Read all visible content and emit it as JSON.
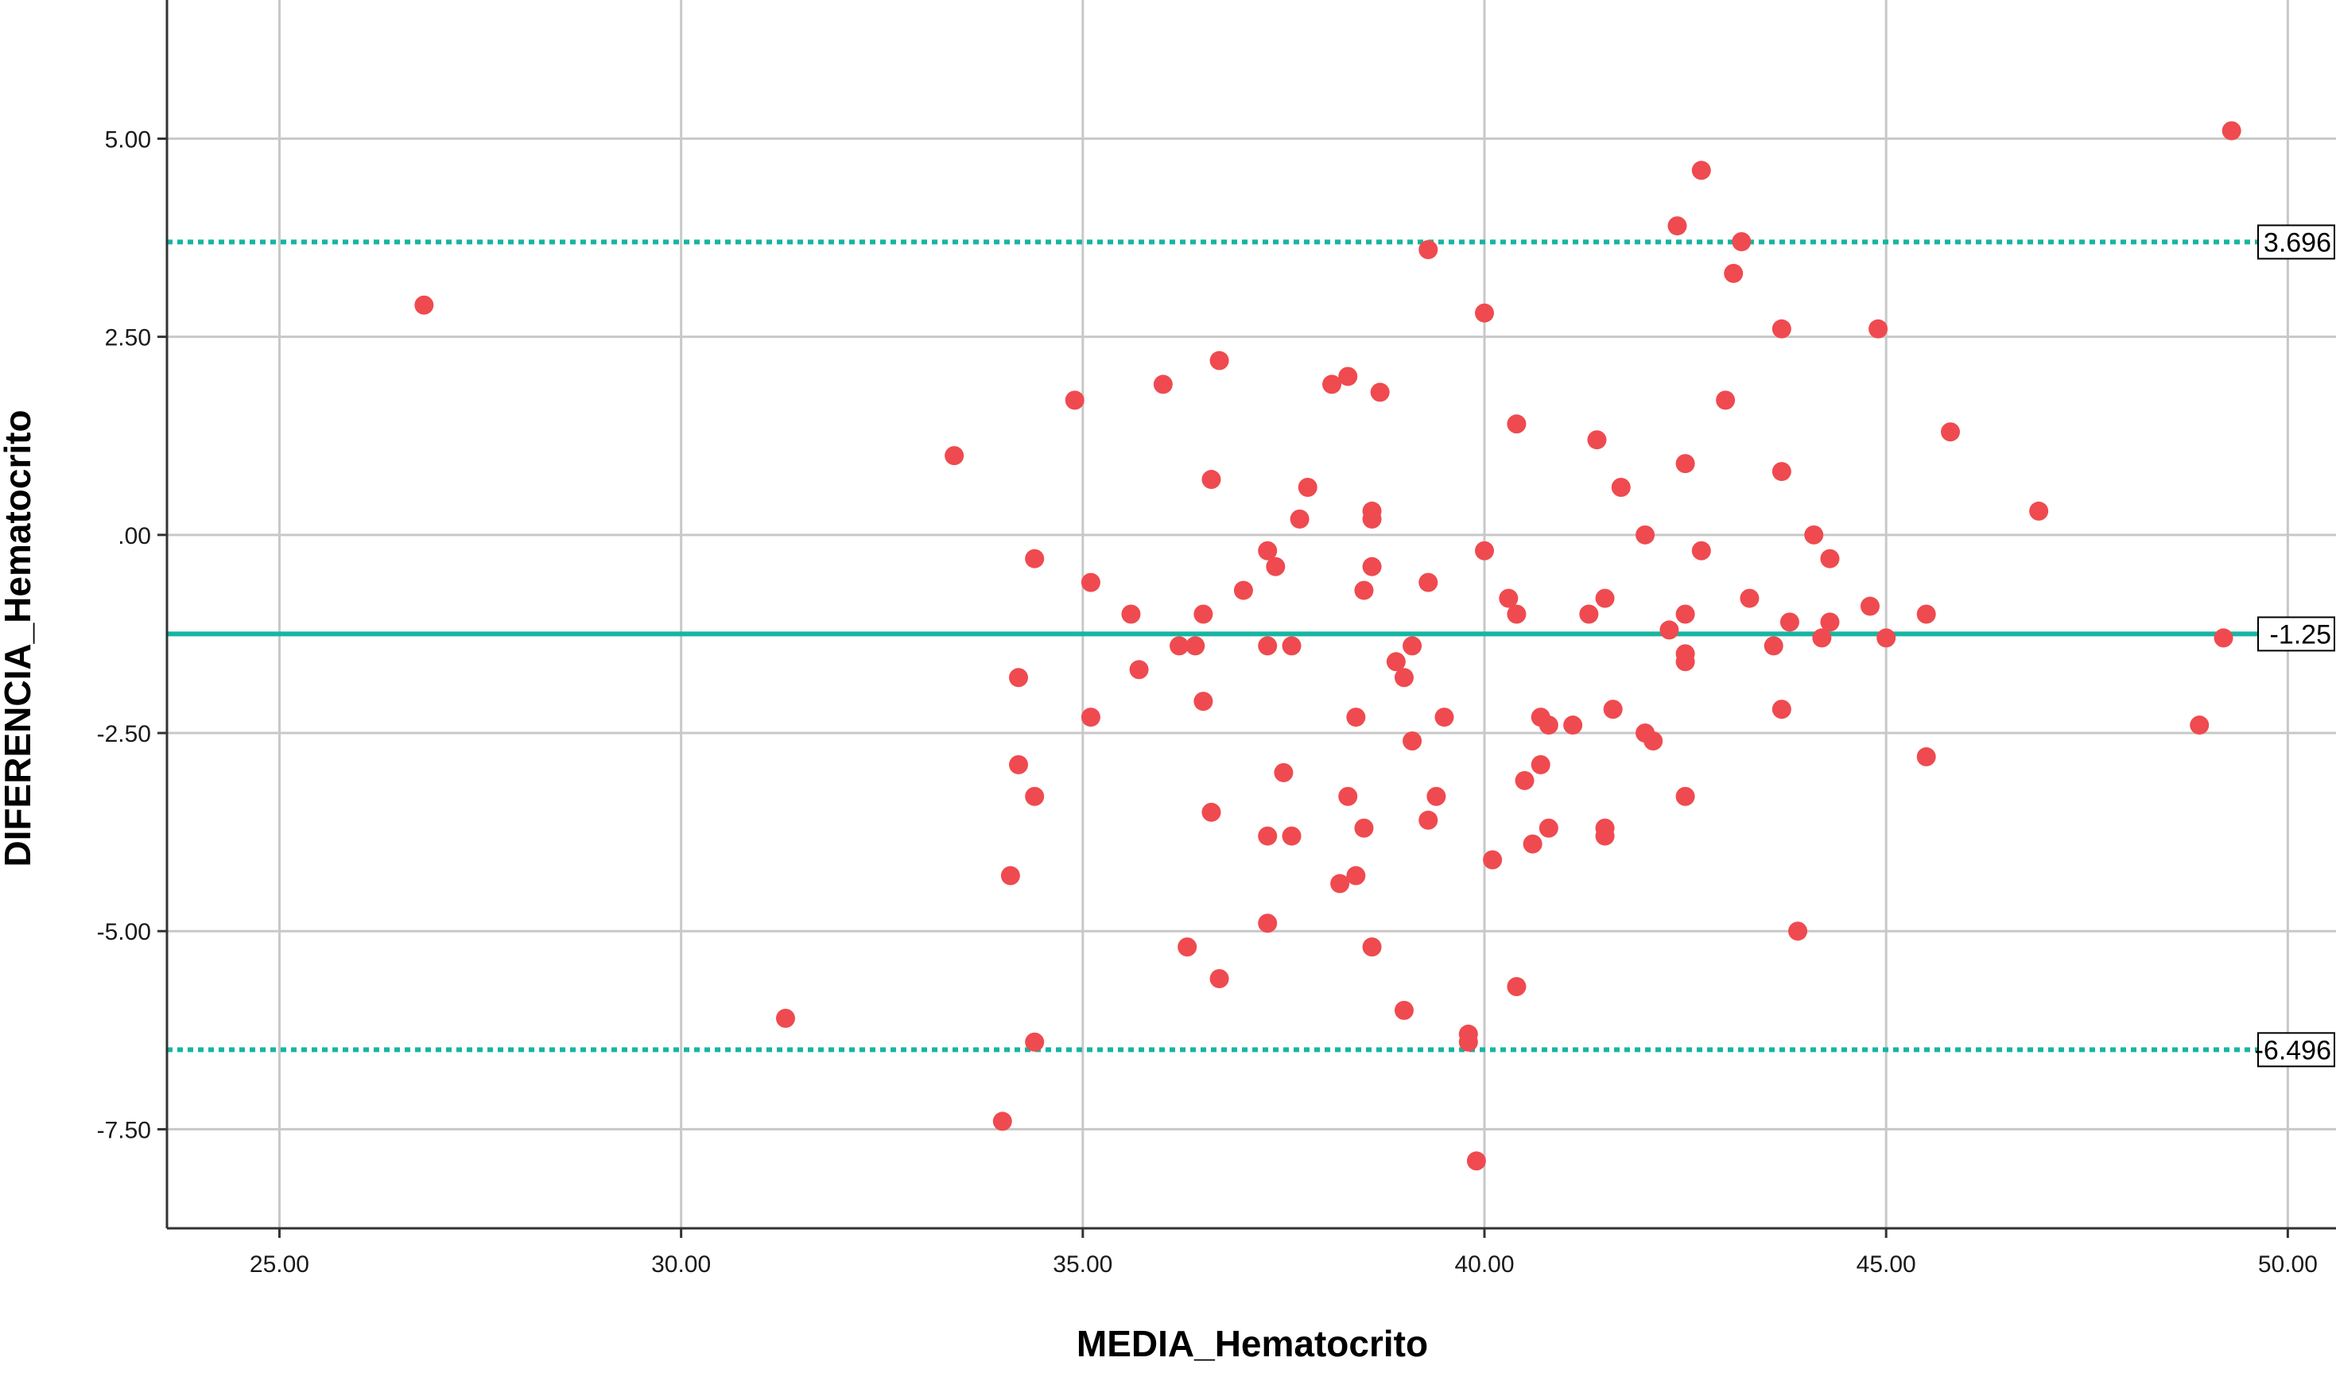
{
  "colors": {
    "background": "#ffffff",
    "grid": "#c8c8c8",
    "axis": "#333333",
    "point": "#ef4a4f",
    "reference_line": "#17b5a2"
  },
  "chart_data": {
    "type": "scatter",
    "title": "",
    "xlabel": "MEDIA_Hematocrito",
    "ylabel": "DIFERENCIA_Hematocrito",
    "xlim": [
      23.6,
      50.6
    ],
    "ylim": [
      -8.75,
      6.75
    ],
    "grid": true,
    "x_ticks": [
      25,
      30,
      35,
      40,
      45,
      50
    ],
    "x_tick_labels": [
      "25.00",
      "30.00",
      "35.00",
      "40.00",
      "45.00",
      "50.00"
    ],
    "y_ticks": [
      5,
      2.5,
      0,
      -2.5,
      -5,
      -7.5
    ],
    "y_tick_labels": [
      "5.00",
      "2.50",
      ".00",
      "-2.50",
      "-5.00",
      "-7.50"
    ],
    "reference_lines": [
      {
        "value": 3.696,
        "label": "3.696",
        "style": "dotted"
      },
      {
        "value": -1.25,
        "label": "-1.25",
        "style": "solid"
      },
      {
        "value": -6.496,
        "label": "-6.496",
        "style": "dotted"
      }
    ],
    "points": [
      {
        "x": 26.8,
        "y": 2.9
      },
      {
        "x": 31.3,
        "y": -6.1
      },
      {
        "x": 33.4,
        "y": 1.0
      },
      {
        "x": 34.0,
        "y": -7.4
      },
      {
        "x": 34.1,
        "y": -4.3
      },
      {
        "x": 34.2,
        "y": -2.9
      },
      {
        "x": 34.2,
        "y": -1.8
      },
      {
        "x": 34.4,
        "y": -0.3
      },
      {
        "x": 34.4,
        "y": -3.3
      },
      {
        "x": 34.4,
        "y": -6.4
      },
      {
        "x": 34.9,
        "y": 1.7
      },
      {
        "x": 35.1,
        "y": -0.6
      },
      {
        "x": 35.1,
        "y": -2.3
      },
      {
        "x": 35.6,
        "y": -1.0
      },
      {
        "x": 35.7,
        "y": -1.7
      },
      {
        "x": 36.0,
        "y": 1.9
      },
      {
        "x": 36.2,
        "y": -1.4
      },
      {
        "x": 36.3,
        "y": -5.2
      },
      {
        "x": 36.4,
        "y": -1.4
      },
      {
        "x": 36.5,
        "y": -2.1
      },
      {
        "x": 36.5,
        "y": -1.0
      },
      {
        "x": 36.6,
        "y": 0.7
      },
      {
        "x": 36.6,
        "y": -3.5
      },
      {
        "x": 36.7,
        "y": 2.2
      },
      {
        "x": 36.7,
        "y": -5.6
      },
      {
        "x": 37.0,
        "y": -0.7
      },
      {
        "x": 37.3,
        "y": -4.9
      },
      {
        "x": 37.3,
        "y": -0.2
      },
      {
        "x": 37.3,
        "y": -1.4
      },
      {
        "x": 37.3,
        "y": -3.8
      },
      {
        "x": 37.4,
        "y": -0.4
      },
      {
        "x": 37.5,
        "y": -3.0
      },
      {
        "x": 37.6,
        "y": -1.4
      },
      {
        "x": 37.6,
        "y": -3.8
      },
      {
        "x": 37.7,
        "y": 0.2
      },
      {
        "x": 37.8,
        "y": 0.6
      },
      {
        "x": 38.1,
        "y": 1.9
      },
      {
        "x": 38.2,
        "y": -4.4
      },
      {
        "x": 38.3,
        "y": 2.0
      },
      {
        "x": 38.3,
        "y": -3.3
      },
      {
        "x": 38.4,
        "y": -2.3
      },
      {
        "x": 38.4,
        "y": -4.3
      },
      {
        "x": 38.5,
        "y": -0.7
      },
      {
        "x": 38.5,
        "y": -3.7
      },
      {
        "x": 38.6,
        "y": 0.3
      },
      {
        "x": 38.6,
        "y": 0.2
      },
      {
        "x": 38.6,
        "y": -0.4
      },
      {
        "x": 38.6,
        "y": -5.2
      },
      {
        "x": 38.7,
        "y": 1.8
      },
      {
        "x": 38.9,
        "y": -1.6
      },
      {
        "x": 39.0,
        "y": -1.8
      },
      {
        "x": 39.0,
        "y": -6.0
      },
      {
        "x": 39.1,
        "y": -1.4
      },
      {
        "x": 39.1,
        "y": -2.6
      },
      {
        "x": 39.3,
        "y": 3.6
      },
      {
        "x": 39.3,
        "y": -0.6
      },
      {
        "x": 39.3,
        "y": -3.6
      },
      {
        "x": 39.4,
        "y": -3.3
      },
      {
        "x": 39.5,
        "y": -2.3
      },
      {
        "x": 39.8,
        "y": -6.3
      },
      {
        "x": 39.8,
        "y": -6.4
      },
      {
        "x": 39.9,
        "y": -7.9
      },
      {
        "x": 40.0,
        "y": 2.8
      },
      {
        "x": 40.0,
        "y": -0.2
      },
      {
        "x": 40.1,
        "y": -4.1
      },
      {
        "x": 40.3,
        "y": -0.8
      },
      {
        "x": 40.4,
        "y": -1.0
      },
      {
        "x": 40.4,
        "y": 1.4
      },
      {
        "x": 40.4,
        "y": -5.7
      },
      {
        "x": 40.5,
        "y": -3.1
      },
      {
        "x": 40.6,
        "y": -3.9
      },
      {
        "x": 40.7,
        "y": -2.3
      },
      {
        "x": 40.7,
        "y": -2.9
      },
      {
        "x": 40.8,
        "y": -2.4
      },
      {
        "x": 40.8,
        "y": -3.7
      },
      {
        "x": 41.1,
        "y": -2.4
      },
      {
        "x": 41.3,
        "y": -1.0
      },
      {
        "x": 41.4,
        "y": 1.2
      },
      {
        "x": 41.5,
        "y": -0.8
      },
      {
        "x": 41.5,
        "y": -3.7
      },
      {
        "x": 41.5,
        "y": -3.8
      },
      {
        "x": 41.6,
        "y": -2.2
      },
      {
        "x": 41.7,
        "y": 0.6
      },
      {
        "x": 42.0,
        "y": 0.0
      },
      {
        "x": 42.0,
        "y": -2.5
      },
      {
        "x": 42.1,
        "y": -2.6
      },
      {
        "x": 42.3,
        "y": -1.2
      },
      {
        "x": 42.4,
        "y": 3.9
      },
      {
        "x": 42.5,
        "y": 0.9
      },
      {
        "x": 42.5,
        "y": -1.5
      },
      {
        "x": 42.5,
        "y": -1.0
      },
      {
        "x": 42.5,
        "y": -1.6
      },
      {
        "x": 42.5,
        "y": -3.3
      },
      {
        "x": 42.7,
        "y": 4.6
      },
      {
        "x": 42.7,
        "y": -0.2
      },
      {
        "x": 43.0,
        "y": 1.7
      },
      {
        "x": 43.1,
        "y": 3.3
      },
      {
        "x": 43.2,
        "y": 3.7
      },
      {
        "x": 43.3,
        "y": -0.8
      },
      {
        "x": 43.6,
        "y": -1.4
      },
      {
        "x": 43.7,
        "y": 2.6
      },
      {
        "x": 43.7,
        "y": 0.8
      },
      {
        "x": 43.7,
        "y": -2.2
      },
      {
        "x": 43.8,
        "y": -1.1
      },
      {
        "x": 43.9,
        "y": -5.0
      },
      {
        "x": 44.1,
        "y": 0.0
      },
      {
        "x": 44.2,
        "y": -1.3
      },
      {
        "x": 44.3,
        "y": -0.3
      },
      {
        "x": 44.3,
        "y": -1.1
      },
      {
        "x": 44.8,
        "y": -0.9
      },
      {
        "x": 44.9,
        "y": 2.6
      },
      {
        "x": 45.0,
        "y": -1.3
      },
      {
        "x": 45.5,
        "y": -1.0
      },
      {
        "x": 45.5,
        "y": -2.8
      },
      {
        "x": 45.8,
        "y": 1.3
      },
      {
        "x": 46.9,
        "y": 0.3
      },
      {
        "x": 48.9,
        "y": -2.4
      },
      {
        "x": 49.2,
        "y": -1.3
      },
      {
        "x": 49.3,
        "y": 5.1
      }
    ]
  }
}
